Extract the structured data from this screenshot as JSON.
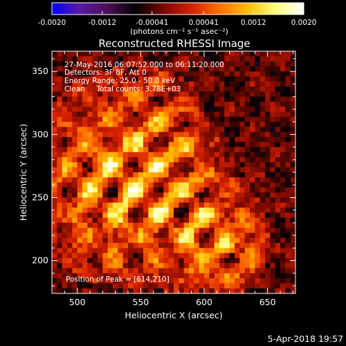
{
  "chart_data": {
    "type": "heatmap",
    "title": "Reconstructed RHESSI Image",
    "xlabel": "Heliocentric X (arcsec)",
    "ylabel": "Heliocentric Y (arcsec)",
    "xlim": [
      480,
      672
    ],
    "ylim": [
      174,
      366
    ],
    "x_ticks": [
      500,
      550,
      600,
      650
    ],
    "y_ticks": [
      200,
      250,
      300,
      350
    ],
    "colorbar": {
      "range": [
        -0.002,
        0.002
      ],
      "tick_labels": [
        "-0.0020",
        "-0.0012",
        "-0.00041",
        "0.00041",
        "0.0012",
        "0.0020"
      ],
      "tick_values": [
        -0.002,
        -0.0012,
        -0.00041,
        0.00041,
        0.0012,
        0.002
      ],
      "unit_label": "(photons cm⁻² s⁻¹ asec⁻²)",
      "colors": [
        "#0000ff",
        "#5a1aa0",
        "#4a0f55",
        "#000000",
        "#7a0a00",
        "#d62000",
        "#ff7000",
        "#ffc000",
        "#ffff80",
        "#ffffff"
      ]
    },
    "annotations": [
      "27-May-2016 06:07:52.000 to 06:11:20.000",
      "Detectors: 3F 8F, Att 0",
      "Energy Range: 25.0 - 50.0 keV",
      "Clean     Total counts: 3.78E+03"
    ],
    "peak_label": "Position of Peak = [614,210]",
    "peak": [
      614,
      210
    ],
    "grid_cells": 48,
    "grid": false
  },
  "footer": {
    "date": "5-Apr-2018 19:57"
  }
}
